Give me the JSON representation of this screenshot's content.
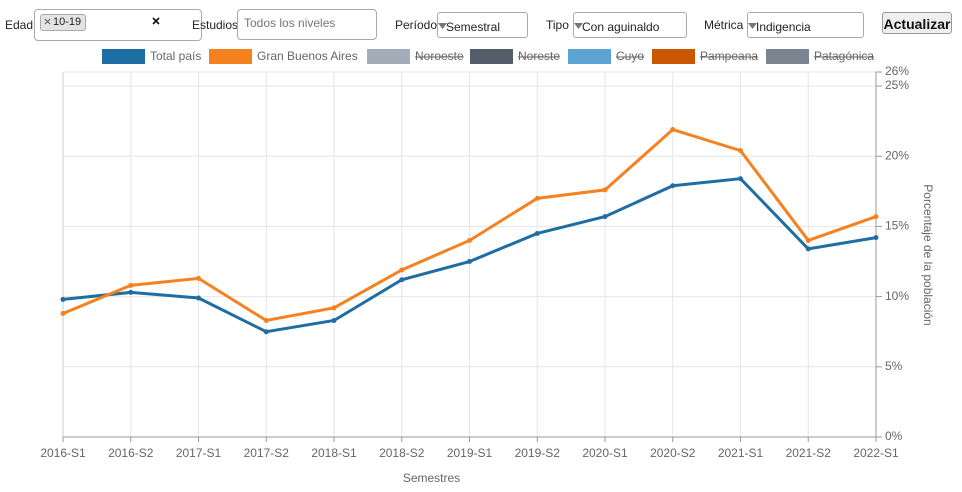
{
  "controls": {
    "edad": {
      "label": "Edad",
      "tag": "10-19"
    },
    "estudios": {
      "label": "Estudios",
      "placeholder": "Todos los niveles"
    },
    "periodo": {
      "label": "Período",
      "value": "Semestral"
    },
    "tipo": {
      "label": "Tipo",
      "value": "Con aguinaldo"
    },
    "metrica": {
      "label": "Métrica",
      "value": "Indigencia"
    },
    "button": "Actualizar"
  },
  "chart_data": {
    "type": "line",
    "x_label": "Semestres",
    "y_label": "Porcentaje de la población",
    "categories": [
      "2016-S1",
      "2016-S2",
      "2017-S1",
      "2017-S2",
      "2018-S1",
      "2018-S2",
      "2019-S1",
      "2019-S2",
      "2020-S1",
      "2020-S2",
      "2021-S1",
      "2021-S2",
      "2022-S1"
    ],
    "series": [
      {
        "name": "Total país",
        "color": "#1f6ea3",
        "visible": true,
        "values": [
          9.8,
          10.3,
          9.9,
          7.5,
          8.3,
          11.2,
          12.5,
          14.5,
          15.7,
          17.9,
          18.4,
          13.4,
          14.2
        ]
      },
      {
        "name": "Gran Buenos Aires",
        "color": "#f5821f",
        "visible": true,
        "values": [
          8.8,
          10.8,
          11.3,
          8.3,
          9.2,
          11.9,
          14.0,
          17.0,
          17.6,
          21.9,
          20.4,
          14.0,
          15.7
        ]
      },
      {
        "name": "Noroeste",
        "color": "#a3acb9",
        "visible": false,
        "values": [
          null,
          null,
          null,
          null,
          null,
          null,
          null,
          null,
          null,
          null,
          null,
          null,
          null
        ]
      },
      {
        "name": "Noreste",
        "color": "#555d6b",
        "visible": false,
        "values": [
          null,
          null,
          null,
          null,
          null,
          null,
          null,
          null,
          null,
          null,
          null,
          null,
          null
        ]
      },
      {
        "name": "Cuyo",
        "color": "#5ba3d0",
        "visible": false,
        "values": [
          null,
          null,
          null,
          null,
          null,
          null,
          null,
          null,
          null,
          null,
          null,
          null,
          null
        ]
      },
      {
        "name": "Pampeana",
        "color": "#cc5500",
        "visible": false,
        "values": [
          null,
          null,
          null,
          null,
          null,
          null,
          null,
          null,
          null,
          null,
          null,
          null,
          null
        ]
      },
      {
        "name": "Patagónica",
        "color": "#7b8591",
        "visible": false,
        "values": [
          null,
          null,
          null,
          null,
          null,
          null,
          null,
          null,
          null,
          null,
          null,
          null,
          null
        ]
      }
    ],
    "ylim": [
      0,
      26
    ],
    "yticks": [
      {
        "value": 0,
        "label": "0%"
      },
      {
        "value": 5,
        "label": "5%"
      },
      {
        "value": 10,
        "label": "10%"
      },
      {
        "value": 15,
        "label": "15%"
      },
      {
        "value": 20,
        "label": "20%"
      },
      {
        "value": 25,
        "label": "25%"
      },
      {
        "value": 26,
        "label": "26%"
      }
    ],
    "grid": true,
    "y_axis_side": "right"
  }
}
